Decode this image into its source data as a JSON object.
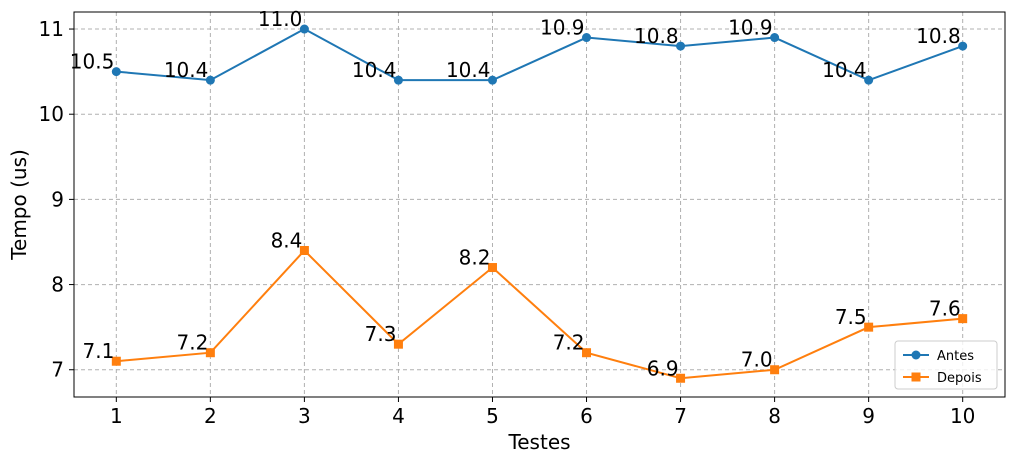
{
  "chart_data": {
    "type": "line",
    "x": [
      1,
      2,
      3,
      4,
      5,
      6,
      7,
      8,
      9,
      10
    ],
    "series": [
      {
        "name": "Antes",
        "values": [
          10.5,
          10.4,
          11.0,
          10.4,
          10.4,
          10.9,
          10.8,
          10.9,
          10.4,
          10.8
        ],
        "labels": [
          "10.5",
          "10.4",
          "11.0",
          "10.4",
          "10.4",
          "10.9",
          "10.8",
          "10.9",
          "10.4",
          "10.8"
        ],
        "color": "#1f77b4",
        "marker": "circle"
      },
      {
        "name": "Depois",
        "values": [
          7.1,
          7.2,
          8.4,
          7.3,
          8.2,
          7.2,
          6.9,
          7.0,
          7.5,
          7.6
        ],
        "labels": [
          "7.1",
          "7.2",
          "8.4",
          "7.3",
          "8.2",
          "7.2",
          "6.9",
          "7.0",
          "7.5",
          "7.6"
        ],
        "color": "#ff7f0e",
        "marker": "square"
      }
    ],
    "xlabel": "Testes",
    "ylabel": "Tempo (us)",
    "xticks": [
      "1",
      "2",
      "3",
      "4",
      "5",
      "6",
      "7",
      "8",
      "9",
      "10"
    ],
    "yticks": [
      "7",
      "8",
      "9",
      "10",
      "11"
    ],
    "xlim": [
      0.55,
      10.45
    ],
    "ylim": [
      6.68,
      11.2
    ],
    "grid": true,
    "legend_position": "bottom-right"
  }
}
